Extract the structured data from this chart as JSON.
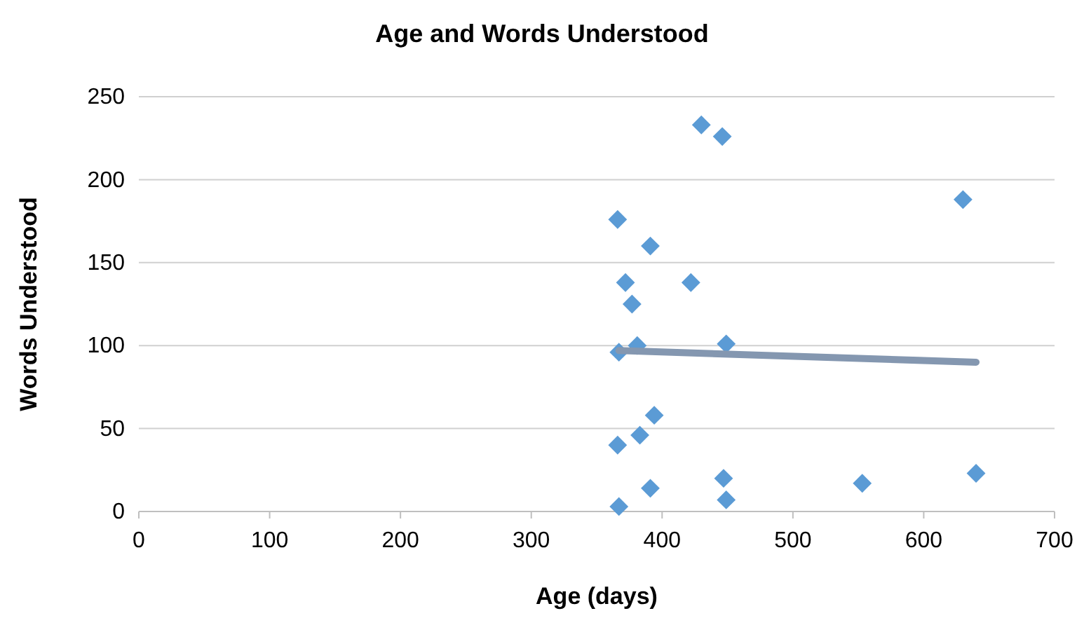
{
  "chart_data": {
    "type": "scatter",
    "title": "Age and Words Understood",
    "xlabel": "Age (days)",
    "ylabel": "Words Understood",
    "xlim": [
      0,
      700
    ],
    "xticks": [
      0,
      100,
      200,
      300,
      400,
      500,
      600,
      700
    ],
    "ylim": [
      0,
      250
    ],
    "yticks": [
      0,
      50,
      100,
      150,
      200,
      250
    ],
    "grid": "y",
    "series": [
      {
        "color": "#5b9bd5",
        "marker": "diamond",
        "x": [
          430,
          446,
          366,
          391,
          372,
          422,
          377,
          367,
          381,
          449,
          394,
          383,
          366,
          391,
          447,
          367,
          449,
          630,
          553,
          640
        ],
        "values": [
          233,
          226,
          176,
          160,
          138,
          138,
          125,
          96,
          100,
          101,
          58,
          46,
          40,
          14,
          20,
          3,
          7,
          188,
          17,
          23
        ]
      },
      {
        "type": "line",
        "marker": "none",
        "color": "#8497b0",
        "line_style": "solid",
        "x": [
          367,
          640
        ],
        "values": [
          97,
          90
        ]
      }
    ]
  }
}
